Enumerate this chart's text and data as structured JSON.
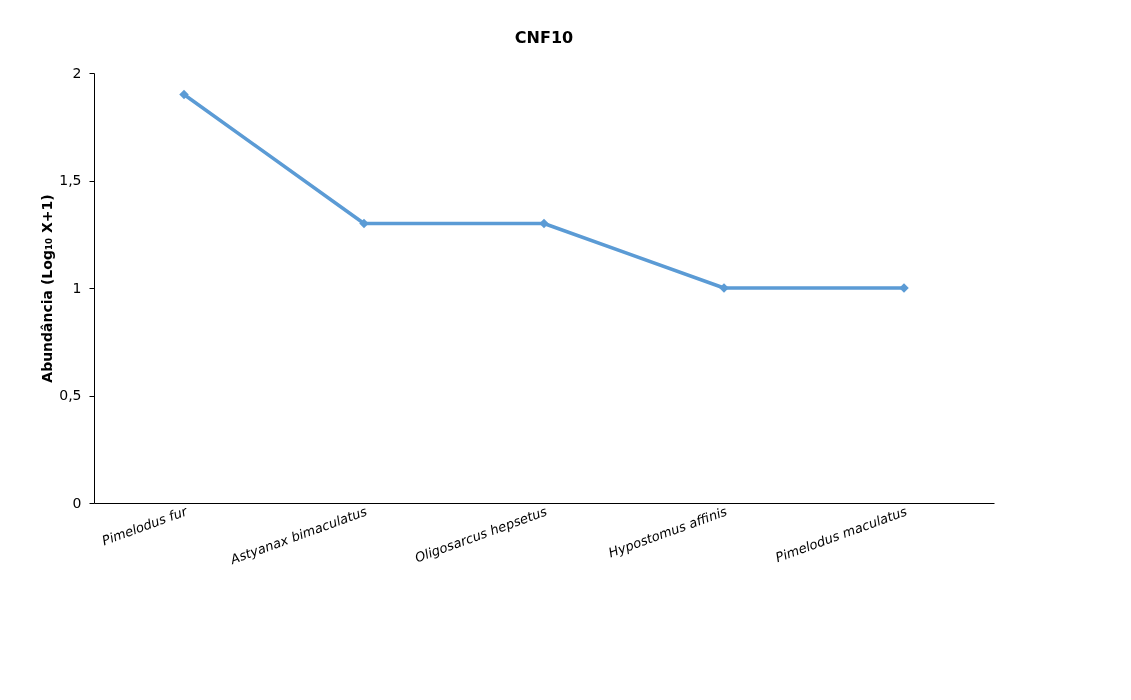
{
  "chart_data": {
    "type": "line",
    "title": "CNF10",
    "ylabel": "Abundância (Log₁₀ X+1)",
    "categories": [
      "Pimelodus fur",
      "Astyanax bimaculatus",
      "Oligosarcus hepsetus",
      "Hypostomus affinis",
      "Pimelodus maculatus"
    ],
    "series": [
      {
        "color": "#5b9bd5",
        "values": [
          1.9,
          1.3,
          1.3,
          1.0,
          1.0
        ]
      }
    ],
    "ylim": [
      0,
      2
    ],
    "yticks": [
      0,
      {
        "value": 0.5,
        "label": "0,5"
      },
      1,
      {
        "value": 1.5,
        "label": "1,5"
      },
      2
    ],
    "grid": false,
    "marker": "diamond",
    "line_style": "solid"
  }
}
